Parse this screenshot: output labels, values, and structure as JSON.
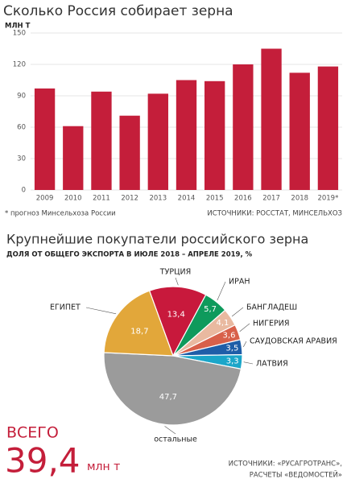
{
  "chart_data": [
    {
      "type": "bar",
      "title": "Сколько Россия собирает зерна",
      "y_label": "МЛН Т",
      "categories": [
        "2009",
        "2010",
        "2011",
        "2012",
        "2013",
        "2014",
        "2015",
        "2016",
        "2017",
        "2018",
        "2019*"
      ],
      "values": [
        97,
        61,
        94,
        71,
        92,
        105,
        104,
        120,
        135,
        112,
        118
      ],
      "color": "#c41e3a",
      "ylim": [
        0,
        150
      ],
      "yticks": [
        0,
        30,
        60,
        90,
        120,
        150
      ],
      "grid": true,
      "footnote": "* прогноз Минсельхоза России",
      "source": "ИСТОЧНИКИ: РОССТАТ, МИНСЕЛЬХОЗ"
    },
    {
      "type": "pie",
      "title": "Крупнейшие покупатели российского зерна",
      "subtitle": "ДОЛЯ ОТ ОБЩЕГО ЭКСПОРТА В ИЮЛЕ 2018 – АПРЕЛЕ 2019, %",
      "categories": [
        "ТУРЦИЯ",
        "ИРАН",
        "БАНГЛАДЕШ",
        "НИГЕРИЯ",
        "САУДОВСКАЯ АРАВИЯ",
        "ЛАТВИЯ",
        "остальные",
        "ЕГИПЕТ"
      ],
      "values": [
        13.4,
        5.7,
        4.1,
        3.6,
        3.5,
        3.3,
        47.7,
        18.7
      ],
      "value_labels": [
        "13,4",
        "5,7",
        "4,1",
        "3,6",
        "3,5",
        "3,3",
        "47,7",
        "18,7"
      ],
      "colors": [
        "#c8193c",
        "#0e9a5c",
        "#e9b9a0",
        "#d8604a",
        "#1f5ea8",
        "#1ba6c9",
        "#9b9b9b",
        "#e2a73a"
      ],
      "total_label": "ВСЕГО",
      "total": "39,4",
      "total_unit": "млн т",
      "source": [
        "ИСТОЧНИКИ: «РУСАГРОТРАНС»,",
        "РАСЧЕТЫ «ВЕДОМОСТЕЙ»"
      ]
    }
  ]
}
